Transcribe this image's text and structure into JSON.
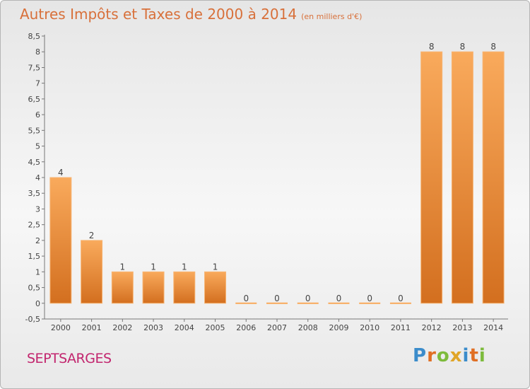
{
  "title": {
    "main": "Autres Impôts et Taxes de 2000 à 2014",
    "unit": "(en milliers d'€)"
  },
  "footer": {
    "commune": "SEPTSARGES"
  },
  "logo": {
    "text": "Proxiti",
    "letters": [
      "P",
      "r",
      "o",
      "x",
      "i",
      "t",
      "i"
    ],
    "colors": [
      "#3b8ccb",
      "#e06f24",
      "#7dbb3c",
      "#e0a527",
      "#3b8ccb",
      "#e06f24",
      "#7dbb3c"
    ]
  },
  "chart_data": {
    "type": "bar",
    "categories": [
      "2000",
      "2001",
      "2002",
      "2003",
      "2004",
      "2005",
      "2006",
      "2007",
      "2008",
      "2009",
      "2010",
      "2011",
      "2012",
      "2013",
      "2014"
    ],
    "values": [
      4,
      2,
      1,
      1,
      1,
      1,
      0,
      0,
      0,
      0,
      0,
      0,
      8,
      8,
      8
    ],
    "ylim": [
      -0.5,
      8.5
    ],
    "yticks": [
      "-0,5",
      "0",
      "0,5",
      "1",
      "1,5",
      "2",
      "2,5",
      "3",
      "3,5",
      "4",
      "4,5",
      "5",
      "5,5",
      "6",
      "6,5",
      "7",
      "7,5",
      "8",
      "8,5"
    ],
    "ytick_values": [
      -0.5,
      0,
      0.5,
      1,
      1.5,
      2,
      2.5,
      3,
      3.5,
      4,
      4.5,
      5,
      5.5,
      6,
      6.5,
      7,
      7.5,
      8,
      8.5
    ],
    "grid": false,
    "bar_color": "#ee8a3a",
    "bar_color_light": "#f9aa5c",
    "bar_color_dark": "#d36f1f"
  }
}
